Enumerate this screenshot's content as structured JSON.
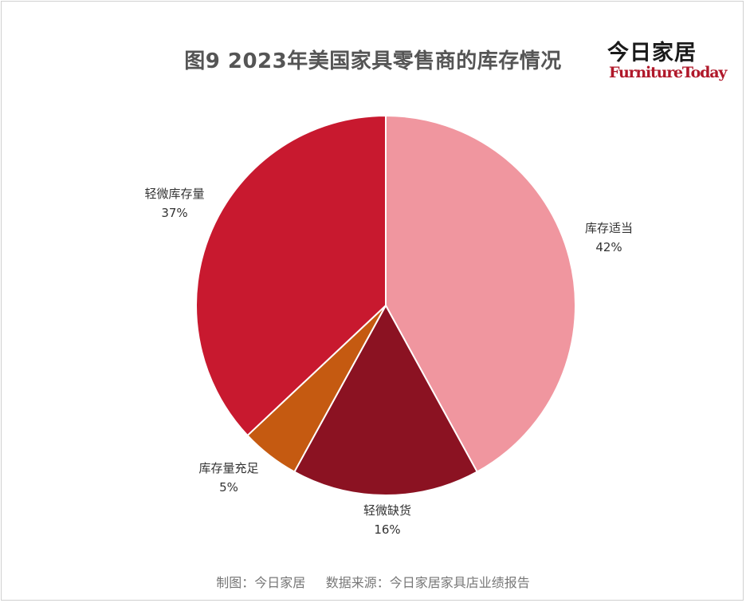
{
  "logo": {
    "cn": "今日家居",
    "en": "FurnitureToday"
  },
  "chart_data": {
    "type": "pie",
    "title": "图9  2023年美国家具零售商的库存情况",
    "slices": [
      {
        "label": "库存适当",
        "value": 42,
        "value_label": "42%",
        "color": "#f0969f"
      },
      {
        "label": "轻微缺货",
        "value": 16,
        "value_label": "16%",
        "color": "#8b1222"
      },
      {
        "label": "库存量充足",
        "value": 5,
        "value_label": "5%",
        "color": "#c55a11"
      },
      {
        "label": "轻微库存量",
        "value": 37,
        "value_label": "37%",
        "color": "#c8192f"
      }
    ],
    "start": "12 o'clock",
    "direction": "clockwise"
  },
  "footer": {
    "text": "制图：今日家居     数据来源：今日家居家具店业绩报告"
  }
}
